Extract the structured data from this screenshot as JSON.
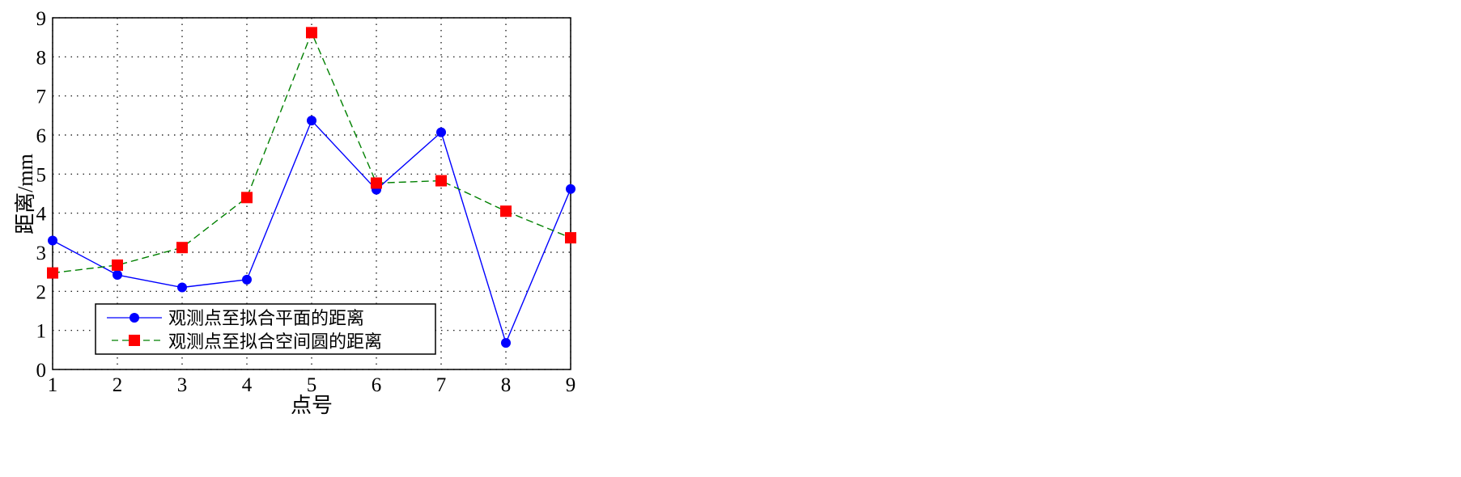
{
  "chart_data": {
    "type": "line",
    "xlabel": "点号",
    "ylabel": "距离/mm",
    "x": [
      1,
      2,
      3,
      4,
      5,
      6,
      7,
      8,
      9
    ],
    "xlim": [
      1,
      9
    ],
    "ylim": [
      0,
      9
    ],
    "xticks": [
      "1",
      "2",
      "3",
      "4",
      "5",
      "6",
      "7",
      "8",
      "9"
    ],
    "yticks": [
      "0",
      "1",
      "2",
      "3",
      "4",
      "5",
      "6",
      "7",
      "8",
      "9"
    ],
    "grid": true,
    "legend_position": "bottom-left",
    "series": [
      {
        "name": "观测点至拟合平面的距离",
        "values": [
          3.3,
          2.42,
          2.1,
          2.3,
          6.37,
          4.6,
          6.07,
          0.68,
          4.62
        ],
        "color": "#0000ff",
        "marker": "circle",
        "line": "solid"
      },
      {
        "name": "观测点至拟合空间圆的距离",
        "values": [
          2.47,
          2.67,
          3.12,
          4.4,
          8.62,
          4.77,
          4.83,
          4.05,
          3.37
        ],
        "color": "#008000",
        "marker_color": "#ff0000",
        "marker": "square",
        "line": "dashed"
      }
    ]
  }
}
